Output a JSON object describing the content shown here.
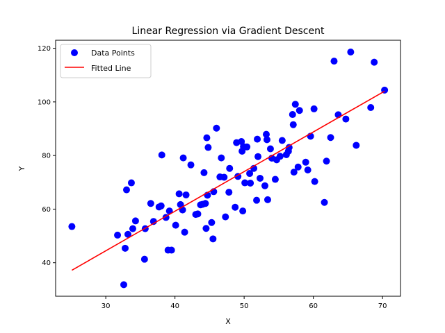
{
  "chart_data": {
    "type": "scatter",
    "title": "Linear Regression via Gradient Descent",
    "xlabel": "X",
    "ylabel": "Y",
    "xlim": [
      22.75,
      72.6
    ],
    "ylim": [
      27.5,
      123
    ],
    "xticks": [
      30,
      40,
      50,
      60,
      70
    ],
    "yticks": [
      40,
      60,
      80,
      100,
      120
    ],
    "grid": false,
    "legend_position": "top-left",
    "colors": {
      "points": "#0000ff",
      "line": "#ff0000"
    },
    "series": [
      {
        "name": "Data Points",
        "kind": "scatter",
        "points": [
          [
            25.1,
            53.5
          ],
          [
            31.7,
            50.3
          ],
          [
            32.6,
            31.8
          ],
          [
            32.8,
            45.4
          ],
          [
            33.0,
            67.2
          ],
          [
            33.2,
            50.6
          ],
          [
            33.7,
            69.8
          ],
          [
            33.9,
            52.7
          ],
          [
            34.3,
            55.6
          ],
          [
            35.6,
            41.3
          ],
          [
            35.7,
            52.7
          ],
          [
            36.5,
            62.1
          ],
          [
            36.9,
            55.4
          ],
          [
            37.7,
            60.8
          ],
          [
            38.0,
            61.2
          ],
          [
            38.1,
            80.2
          ],
          [
            38.7,
            56.9
          ],
          [
            39.0,
            44.7
          ],
          [
            39.2,
            59.3
          ],
          [
            39.5,
            44.7
          ],
          [
            40.1,
            54.0
          ],
          [
            40.6,
            65.7
          ],
          [
            40.8,
            61.7
          ],
          [
            41.1,
            59.7
          ],
          [
            41.2,
            79.1
          ],
          [
            41.4,
            51.4
          ],
          [
            41.6,
            65.3
          ],
          [
            42.3,
            76.5
          ],
          [
            43.0,
            58.0
          ],
          [
            43.3,
            58.2
          ],
          [
            43.7,
            61.6
          ],
          [
            44.0,
            61.8
          ],
          [
            44.2,
            73.6
          ],
          [
            44.4,
            62.1
          ],
          [
            44.5,
            52.8
          ],
          [
            44.6,
            86.6
          ],
          [
            44.7,
            65.2
          ],
          [
            44.8,
            83.0
          ],
          [
            45.3,
            55.0
          ],
          [
            45.5,
            48.9
          ],
          [
            45.6,
            66.5
          ],
          [
            46.0,
            90.2
          ],
          [
            46.5,
            72.0
          ],
          [
            46.7,
            79.1
          ],
          [
            47.1,
            71.9
          ],
          [
            47.3,
            57.1
          ],
          [
            47.8,
            66.3
          ],
          [
            47.9,
            75.2
          ],
          [
            48.7,
            60.7
          ],
          [
            48.9,
            84.8
          ],
          [
            49.1,
            72.2
          ],
          [
            49.6,
            85.2
          ],
          [
            49.7,
            81.6
          ],
          [
            49.8,
            59.3
          ],
          [
            49.9,
            83.3
          ],
          [
            50.1,
            69.8
          ],
          [
            50.4,
            83.2
          ],
          [
            50.8,
            73.3
          ],
          [
            50.9,
            69.7
          ],
          [
            51.4,
            75.2
          ],
          [
            51.8,
            63.3
          ],
          [
            51.9,
            86.1
          ],
          [
            52.0,
            79.6
          ],
          [
            52.3,
            71.5
          ],
          [
            53.0,
            68.7
          ],
          [
            53.2,
            87.9
          ],
          [
            53.3,
            85.9
          ],
          [
            53.4,
            63.5
          ],
          [
            53.8,
            82.5
          ],
          [
            54.0,
            79.0
          ],
          [
            54.5,
            71.1
          ],
          [
            54.7,
            78.4
          ],
          [
            55.2,
            79.7
          ],
          [
            55.5,
            85.6
          ],
          [
            56.1,
            80.3
          ],
          [
            56.4,
            81.6
          ],
          [
            56.5,
            83.0
          ],
          [
            57.0,
            95.3
          ],
          [
            57.1,
            91.5
          ],
          [
            57.2,
            73.8
          ],
          [
            57.4,
            99.1
          ],
          [
            57.8,
            75.7
          ],
          [
            58.0,
            96.8
          ],
          [
            58.9,
            77.5
          ],
          [
            59.2,
            74.6
          ],
          [
            59.6,
            87.2
          ],
          [
            60.1,
            97.4
          ],
          [
            60.2,
            70.3
          ],
          [
            61.6,
            62.5
          ],
          [
            61.9,
            77.9
          ],
          [
            62.5,
            86.7
          ],
          [
            63.0,
            115.2
          ],
          [
            63.6,
            95.2
          ],
          [
            64.7,
            93.6
          ],
          [
            65.4,
            118.6
          ],
          [
            66.2,
            83.8
          ],
          [
            68.3,
            97.9
          ],
          [
            68.8,
            114.8
          ],
          [
            70.3,
            104.4
          ]
        ]
      },
      {
        "name": "Fitted Line",
        "kind": "line",
        "points": [
          [
            25.1,
            37.2
          ],
          [
            70.3,
            104.0
          ]
        ]
      }
    ]
  }
}
